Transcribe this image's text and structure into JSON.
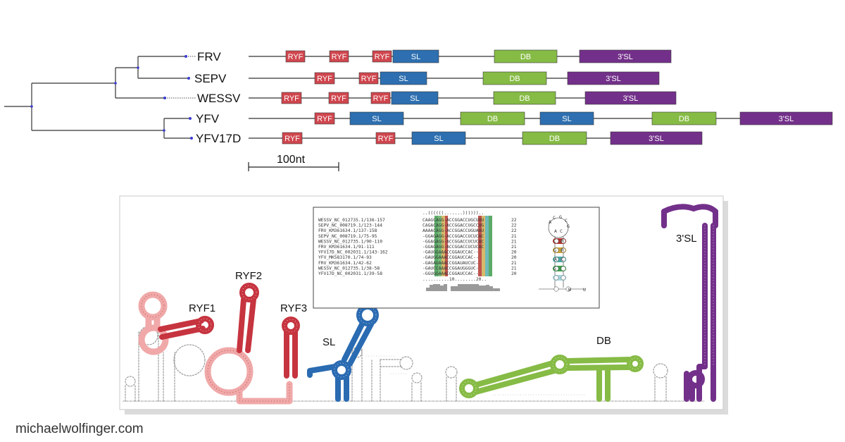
{
  "colors": {
    "RYF": "#d0464e",
    "SL": "#2d6fb0",
    "DB": "#86bb45",
    "3SL": "#73308a",
    "line": "#333333",
    "node": "#3a3ad0"
  },
  "tree": {
    "taxa": [
      "FRV",
      "SEPV",
      "WESSV",
      "YFV",
      "YFV17D"
    ]
  },
  "tracks": [
    {
      "name": "FRV",
      "end": 953,
      "blocks": [
        {
          "type": "RYF",
          "label": "RYF",
          "x1": 406,
          "x2": 433
        },
        {
          "type": "RYF",
          "label": "RYF",
          "x1": 468,
          "x2": 495
        },
        {
          "type": "RYF",
          "label": "RYF",
          "x1": 529,
          "x2": 556
        },
        {
          "type": "SL",
          "label": "SL",
          "x1": 558,
          "x2": 623
        },
        {
          "type": "DB",
          "label": "DB",
          "x1": 702,
          "x2": 791
        },
        {
          "type": "3SL",
          "label": "3'SL",
          "x1": 823,
          "x2": 953
        }
      ]
    },
    {
      "name": "SEPV",
      "end": 936,
      "blocks": [
        {
          "type": "RYF",
          "label": "RYF",
          "x1": 447,
          "x2": 475
        },
        {
          "type": "RYF",
          "label": "RYF",
          "x1": 510,
          "x2": 537
        },
        {
          "type": "SL",
          "label": "SL",
          "x1": 540,
          "x2": 606
        },
        {
          "type": "DB",
          "label": "DB",
          "x1": 686,
          "x2": 776
        },
        {
          "type": "3SL",
          "label": "3'SL",
          "x1": 806,
          "x2": 936
        }
      ]
    },
    {
      "name": "WESSV",
      "end": 960,
      "blocks": [
        {
          "type": "RYF",
          "label": "RYF",
          "x1": 400,
          "x2": 428
        },
        {
          "type": "RYF",
          "label": "RYF",
          "x1": 467,
          "x2": 495
        },
        {
          "type": "RYF",
          "label": "RYF",
          "x1": 527,
          "x2": 554
        },
        {
          "type": "SL",
          "label": "SL",
          "x1": 556,
          "x2": 622
        },
        {
          "type": "DB",
          "label": "DB",
          "x1": 701,
          "x2": 789
        },
        {
          "type": "3SL",
          "label": "3'SL",
          "x1": 831,
          "x2": 960
        }
      ]
    },
    {
      "name": "YFV",
      "end": 1182,
      "blocks": [
        {
          "type": "RYF",
          "label": "RYF",
          "x1": 447,
          "x2": 475
        },
        {
          "type": "SL",
          "label": "SL",
          "x1": 497,
          "x2": 573
        },
        {
          "type": "DB",
          "label": "DB",
          "x1": 654,
          "x2": 745
        },
        {
          "type": "SL",
          "label": "SL",
          "x1": 767,
          "x2": 843
        },
        {
          "type": "DB",
          "label": "DB",
          "x1": 926,
          "x2": 1017
        },
        {
          "type": "3SL",
          "label": "3'SL",
          "x1": 1051,
          "x2": 1182
        }
      ]
    },
    {
      "name": "YFV17D",
      "end": 997,
      "blocks": [
        {
          "type": "RYF",
          "label": "RYF",
          "x1": 401,
          "x2": 429
        },
        {
          "type": "RYF",
          "label": "RYF",
          "x1": 534,
          "x2": 561
        },
        {
          "type": "SL",
          "label": "SL",
          "x1": 585,
          "x2": 661
        },
        {
          "type": "DB",
          "label": "DB",
          "x1": 742,
          "x2": 833
        },
        {
          "type": "3SL",
          "label": "3'SL",
          "x1": 867,
          "x2": 997
        }
      ]
    }
  ],
  "scale_bar": {
    "label": "100nt"
  },
  "alignment": {
    "structure_line": "..((((((.......))))))..",
    "position_line": "..........10........20..",
    "rows": [
      {
        "id": "WESSV_NC_012735.1/136-157",
        "seq": "CAAGCAGG-ACCGGACCUGCUUU",
        "len": "22"
      },
      {
        "id": "SEPV_NC_008719.1/123-144",
        "seq": "CAGACAGG-ACCGGACCUGCCUG",
        "len": "22"
      },
      {
        "id": "FRV_KM361634.1/137-158",
        "seq": "AAAACAGG-ACCGGACCUGUAUU",
        "len": "22"
      },
      {
        "id": "SEPV_NC_008719.1/75-95",
        "seq": "-GGAGAGG-ACCGGACCUCUCAC",
        "len": "21"
      },
      {
        "id": "WESSV_NC_012735.1/90-110",
        "seq": "-GGAGAGG-ACCGGACCUCUCAC",
        "len": "21"
      },
      {
        "id": "FRV_KM361634.1/91-111",
        "seq": "-GGAGAGG-ACCGGACCUCUCAC",
        "len": "21"
      },
      {
        "id": "YFV17D_NC_002031.1/143-162",
        "seq": "-GAUGGAAACCGGAUCCAC--",
        "len": "20"
      },
      {
        "id": "YFV_MK583170.1/74-93",
        "seq": "-GAUGGAAACCGGAUCCAC--",
        "len": "20"
      },
      {
        "id": "FRV_KM361634.1/42-62",
        "seq": "-GAGAUAAACCGGAUAUCUC-",
        "len": "21"
      },
      {
        "id": "WESSV_NC_012735.1/38-58",
        "seq": "-GAUCCAAACCGGAUGGGUC-",
        "len": "21"
      },
      {
        "id": "YFV17D_NC_002031.1/39-58",
        "seq": "-GGUGGAAACCGGAUCCAC--",
        "len": "20"
      }
    ],
    "consensus_letters": [
      "A",
      "C",
      "G",
      "C",
      "G",
      "A",
      "C",
      "C",
      "R",
      "G",
      "R",
      "A",
      "C",
      "G",
      "W",
      "U"
    ]
  },
  "structure_labels": {
    "ryf1": "RYF1",
    "ryf2": "RYF2",
    "ryf3": "RYF3",
    "sl": "SL",
    "db": "DB",
    "tsl": "3'SL"
  },
  "credit": "michaelwolfinger.com"
}
